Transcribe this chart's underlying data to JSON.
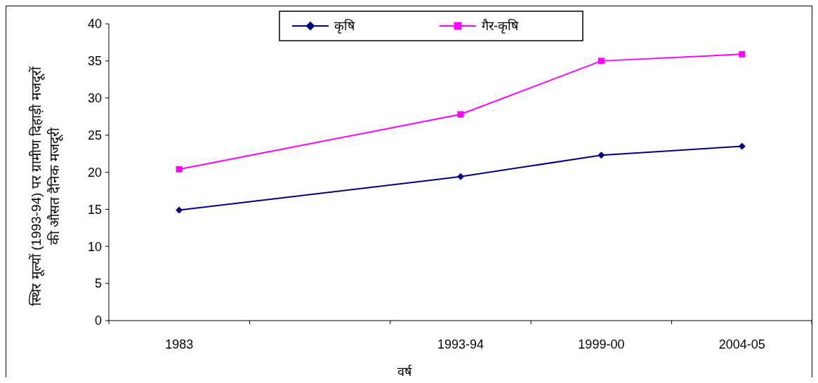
{
  "chart_data": {
    "type": "line",
    "xlabel": "वर्ष",
    "ylabel": "स्थिर मूल्यों (1993-94) पर ग्रामीण दिहाड़ी मजदूरों\nकी औसत दैनिक मजदूरी",
    "categories": [
      "1983",
      null,
      "1993-94",
      "1999-00",
      "2004-05"
    ],
    "series": [
      {
        "name": "कृषि",
        "color": "#000080",
        "marker": "diamond",
        "values": [
          14.9,
          null,
          19.4,
          22.3,
          23.5
        ]
      },
      {
        "name": "गैर-कृषि",
        "color": "#ff00ff",
        "marker": "square",
        "values": [
          20.4,
          null,
          27.8,
          35.0,
          35.9
        ]
      }
    ],
    "ylim": [
      0,
      40
    ],
    "yticks": [
      0,
      5,
      10,
      15,
      20,
      25,
      30,
      35,
      40
    ],
    "grid": false,
    "legend": "top"
  }
}
